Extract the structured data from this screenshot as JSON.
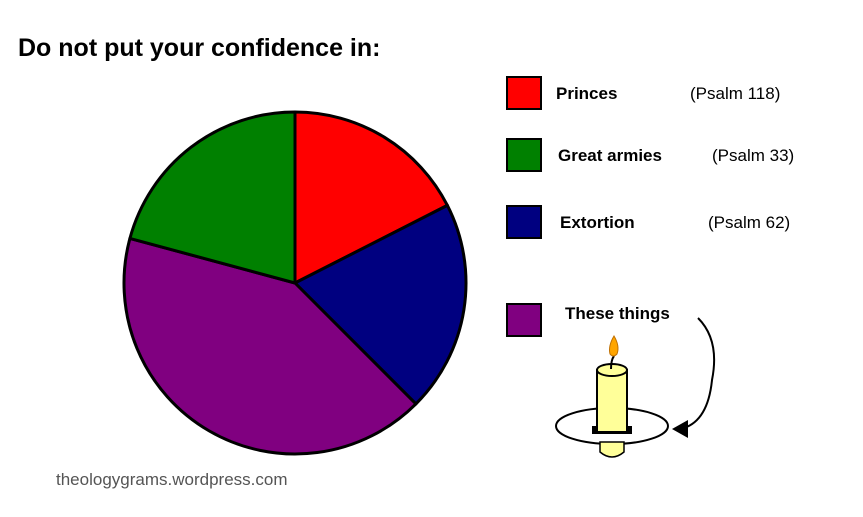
{
  "chart_data": {
    "type": "pie",
    "title": "Do not put your confidence in:",
    "start_angle": "top",
    "direction": "clockwise",
    "slices": [
      {
        "label": "Princes",
        "reference": "(Psalm 118)",
        "value": 17.5,
        "color": "#ff0000"
      },
      {
        "label": "Extortion",
        "reference": "(Psalm 62)",
        "value": 20.0,
        "color": "#000080"
      },
      {
        "label": "These things",
        "reference": "",
        "value": 41.7,
        "color": "#800080"
      },
      {
        "label": "Great armies",
        "reference": "(Psalm 33)",
        "value": 20.8,
        "color": "#008000"
      }
    ],
    "legend_order": [
      "Princes",
      "Great armies",
      "Extortion",
      "These things"
    ],
    "legend_placement": "right",
    "annotation": "candle illustration with arrow pointing from 'These things'"
  },
  "credit": "theologygrams.wordpress.com"
}
